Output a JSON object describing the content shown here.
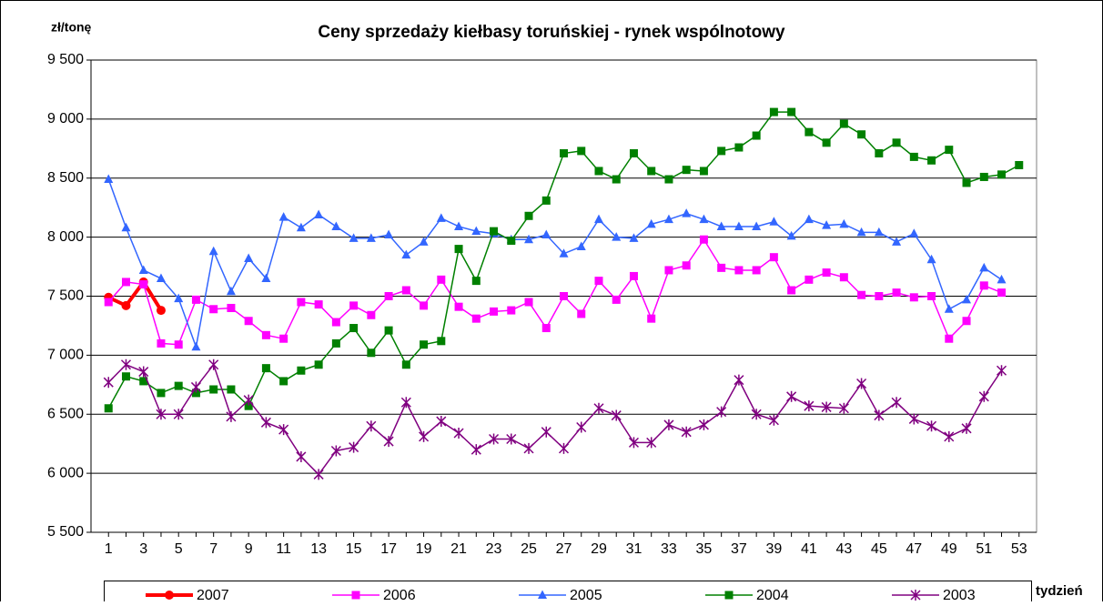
{
  "chart_data": {
    "type": "line",
    "title": "Ceny sprzedaży kiełbasy toruńskiej - rynek wspólnotowy",
    "y_label": "zł/tonę",
    "x_label": "tydzień",
    "x": [
      1,
      2,
      3,
      4,
      5,
      6,
      7,
      8,
      9,
      10,
      11,
      12,
      13,
      14,
      15,
      16,
      17,
      18,
      19,
      20,
      21,
      22,
      23,
      24,
      25,
      26,
      27,
      28,
      29,
      30,
      31,
      32,
      33,
      34,
      35,
      36,
      37,
      38,
      39,
      40,
      41,
      42,
      43,
      44,
      45,
      46,
      47,
      48,
      49,
      50,
      51,
      52,
      53
    ],
    "xlim": [
      0,
      54
    ],
    "xticks": [
      1,
      3,
      5,
      7,
      9,
      11,
      13,
      15,
      17,
      19,
      21,
      23,
      25,
      27,
      29,
      31,
      33,
      35,
      37,
      39,
      41,
      43,
      45,
      47,
      49,
      51,
      53
    ],
    "ylim": [
      5500,
      9500
    ],
    "yticks": [
      {
        "value": 5500,
        "label": "5 500"
      },
      {
        "value": 6000,
        "label": "6 000"
      },
      {
        "value": 6500,
        "label": "6 500"
      },
      {
        "value": 7000,
        "label": "7 000"
      },
      {
        "value": 7500,
        "label": "7 500"
      },
      {
        "value": 8000,
        "label": "8 000"
      },
      {
        "value": 8500,
        "label": "8 500"
      },
      {
        "value": 9000,
        "label": "9 000"
      },
      {
        "value": 9500,
        "label": "9 500"
      }
    ],
    "grid": true,
    "legend": "bottom",
    "series": [
      {
        "name": "2007",
        "color": "#ff0000",
        "marker": "circle",
        "values": [
          7490,
          7420,
          7620,
          7380,
          null,
          null,
          null,
          null,
          null,
          null,
          null,
          null,
          null,
          null,
          null,
          null,
          null,
          null,
          null,
          null,
          null,
          null,
          null,
          null,
          null,
          null,
          null,
          null,
          null,
          null,
          null,
          null,
          null,
          null,
          null,
          null,
          null,
          null,
          null,
          null,
          null,
          null,
          null,
          null,
          null,
          null,
          null,
          null,
          null,
          null,
          null,
          null,
          null
        ]
      },
      {
        "name": "2006",
        "color": "#ff00ff",
        "marker": "square",
        "values": [
          7450,
          7620,
          7600,
          7100,
          7090,
          7470,
          7390,
          7400,
          7290,
          7170,
          7140,
          7450,
          7430,
          7280,
          7420,
          7340,
          7500,
          7550,
          7420,
          7640,
          7410,
          7310,
          7370,
          7380,
          7450,
          7230,
          7500,
          7350,
          7630,
          7470,
          7670,
          7310,
          7720,
          7760,
          7980,
          7740,
          7720,
          7720,
          7830,
          7550,
          7640,
          7700,
          7660,
          7510,
          7500,
          7530,
          7490,
          7500,
          7140,
          7290,
          7590,
          7530,
          null
        ]
      },
      {
        "name": "2005",
        "color": "#3366ff",
        "marker": "triangle",
        "values": [
          8490,
          8080,
          7720,
          7650,
          7480,
          7070,
          7880,
          7540,
          7820,
          7650,
          8170,
          8080,
          8190,
          8090,
          7990,
          7990,
          8020,
          7850,
          7960,
          8160,
          8090,
          8050,
          8030,
          7980,
          7980,
          8020,
          7860,
          7920,
          8150,
          8000,
          7990,
          8110,
          8150,
          8200,
          8150,
          8090,
          8090,
          8090,
          8130,
          8010,
          8150,
          8100,
          8110,
          8040,
          8040,
          7960,
          8030,
          7810,
          7390,
          7470,
          7740,
          7640,
          null
        ]
      },
      {
        "name": "2004",
        "color": "#008000",
        "marker": "square",
        "values": [
          6550,
          6820,
          6780,
          6680,
          6740,
          6680,
          6710,
          6710,
          6570,
          6890,
          6780,
          6870,
          6920,
          7100,
          7230,
          7020,
          7210,
          6920,
          7090,
          7120,
          7900,
          7630,
          8050,
          7970,
          8180,
          8310,
          8710,
          8730,
          8560,
          8490,
          8710,
          8560,
          8490,
          8570,
          8560,
          8730,
          8760,
          8860,
          9060,
          9060,
          8890,
          8800,
          8960,
          8870,
          8710,
          8800,
          8680,
          8650,
          8740,
          8460,
          8510,
          8530,
          8610
        ]
      },
      {
        "name": "2003",
        "color": "#800080",
        "marker": "asterisk",
        "values": [
          6770,
          6920,
          6860,
          6500,
          6500,
          6730,
          6920,
          6480,
          6620,
          6430,
          6370,
          6140,
          5990,
          6190,
          6220,
          6400,
          6270,
          6600,
          6310,
          6440,
          6340,
          6200,
          6290,
          6290,
          6210,
          6350,
          6210,
          6390,
          6550,
          6490,
          6260,
          6260,
          6410,
          6350,
          6410,
          6520,
          6790,
          6500,
          6450,
          6650,
          6570,
          6560,
          6550,
          6760,
          6490,
          6600,
          6460,
          6400,
          6310,
          6380,
          6650,
          6870,
          null
        ]
      }
    ]
  }
}
